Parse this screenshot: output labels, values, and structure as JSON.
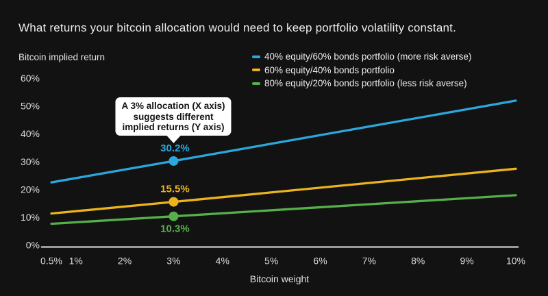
{
  "title": "What returns your bitcoin allocation would need to keep portfolio volatility constant.",
  "chart_data": {
    "type": "line",
    "title": "What returns your bitcoin allocation would need to keep portfolio volatility constant.",
    "ylabel": "Bitcoin implied return",
    "xlabel": "Bitcoin weight",
    "xlim": [
      0.5,
      10
    ],
    "ylim": [
      0,
      60
    ],
    "grid": false,
    "legend_position": "top-right",
    "x_ticks": [
      {
        "label": "0.5%",
        "value": 0.5
      },
      {
        "label": "1%",
        "value": 1
      },
      {
        "label": "2%",
        "value": 2
      },
      {
        "label": "3%",
        "value": 3
      },
      {
        "label": "4%",
        "value": 4
      },
      {
        "label": "5%",
        "value": 5
      },
      {
        "label": "6%",
        "value": 6
      },
      {
        "label": "7%",
        "value": 7
      },
      {
        "label": "8%",
        "value": 8
      },
      {
        "label": "9%",
        "value": 9
      },
      {
        "label": "10%",
        "value": 10
      }
    ],
    "y_ticks": [
      {
        "label": "0%",
        "value": 0
      },
      {
        "label": "10%",
        "value": 10
      },
      {
        "label": "20%",
        "value": 20
      },
      {
        "label": "30%",
        "value": 30
      },
      {
        "label": "40%",
        "value": 40
      },
      {
        "label": "50%",
        "value": 50
      },
      {
        "label": "60%",
        "value": 60
      }
    ],
    "series": [
      {
        "name": "40% equity/60% bonds portfolio (more risk averse)",
        "color": "#2BA7DC",
        "points": [
          {
            "x": 0.5,
            "y": 22.5
          },
          {
            "x": 3,
            "y": 30.2
          },
          {
            "x": 10,
            "y": 51.9
          }
        ],
        "marker": {
          "x": 3,
          "y": 30.2,
          "label": "30.2%",
          "label_position": "above"
        }
      },
      {
        "name": "60% equity/40% bonds portfolio",
        "color": "#EBB41E",
        "points": [
          {
            "x": 0.5,
            "y": 11.3
          },
          {
            "x": 3,
            "y": 15.5
          },
          {
            "x": 10,
            "y": 27.4
          }
        ],
        "marker": {
          "x": 3,
          "y": 15.5,
          "label": "15.5%",
          "label_position": "above"
        }
      },
      {
        "name": "80% equity/20% bonds portfolio (less risk averse)",
        "color": "#56B04A",
        "points": [
          {
            "x": 0.5,
            "y": 7.6
          },
          {
            "x": 3,
            "y": 10.3
          },
          {
            "x": 10,
            "y": 17.9
          }
        ],
        "marker": {
          "x": 3,
          "y": 10.3,
          "label": "10.3%",
          "label_position": "below"
        }
      }
    ],
    "annotation": {
      "lines": [
        "A 3% allocation (X axis)",
        "suggests different",
        "implied returns (Y axis)"
      ],
      "target_x": 3
    }
  },
  "colors": {
    "background": "#121212",
    "text": "#ECECEC",
    "tick_text": "#DCDCDC",
    "axis_line": "#A8A8A8",
    "callout_bg": "#FFFFFF",
    "callout_text": "#141414"
  }
}
